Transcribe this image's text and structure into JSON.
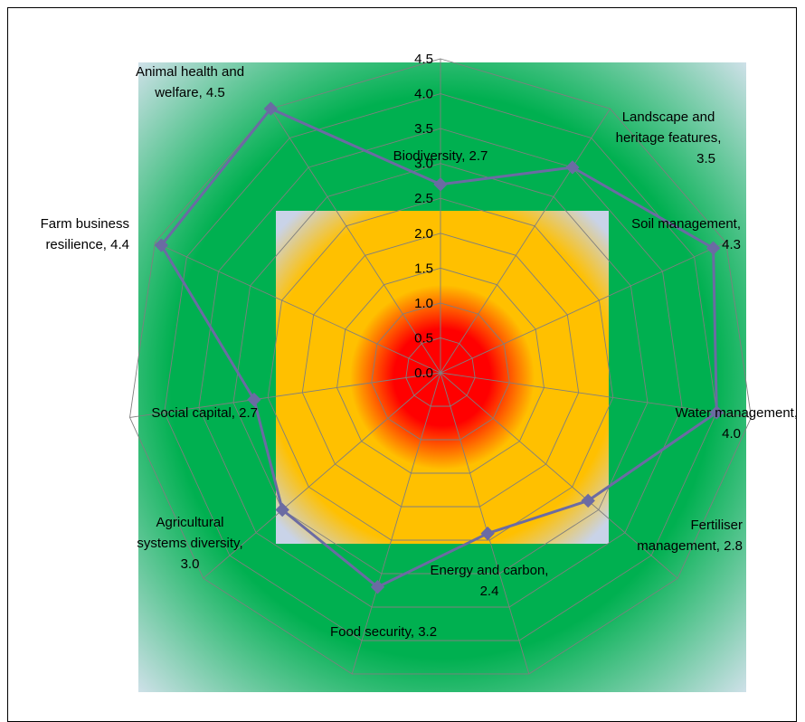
{
  "chart_data": {
    "type": "radar",
    "scale_min": 0,
    "scale_max": 4.5,
    "scale_step": 0.5,
    "tick_labels": [
      "0.0",
      "0.5",
      "1.0",
      "1.5",
      "2.0",
      "2.5",
      "3.0",
      "3.5",
      "4.0",
      "4.5"
    ],
    "categories": [
      "Biodiversity",
      "Landscape and heritage features",
      "Soil management",
      "Water management",
      "Fertiliser management",
      "Energy and carbon",
      "Food security",
      "Agricultural systems diversity",
      "Social capital",
      "Farm business resilience",
      "Animal health and welfare"
    ],
    "values": [
      2.7,
      3.5,
      4.3,
      4.0,
      2.8,
      2.4,
      3.2,
      3.0,
      2.7,
      4.4,
      4.5
    ],
    "data_labels": [
      [
        "Biodiversity, 2.7"
      ],
      [
        "Landscape and",
        "heritage features,",
        "3.5"
      ],
      [
        "Soil management,",
        "4.3"
      ],
      [
        "Water management,",
        "4.0"
      ],
      [
        "Fertiliser",
        "management, 2.8"
      ],
      [
        "Energy and carbon,",
        "2.4"
      ],
      [
        "Food security, 3.2"
      ],
      [
        "Agricultural",
        "systems diversity,",
        "3.0"
      ],
      [
        "Social capital, 2.7"
      ],
      [
        "Farm business",
        "resilience, 4.4"
      ],
      [
        "Animal health and",
        "welfare, 4.5"
      ]
    ],
    "series_color": "#6B6BA3",
    "gridline_color": "#7F7F7F",
    "background_colors": {
      "outer": "#D9E3F0",
      "green": "#00B050",
      "pale": "#C9D3E8",
      "yellow": "#FFC000",
      "red": "#FF0000"
    }
  }
}
